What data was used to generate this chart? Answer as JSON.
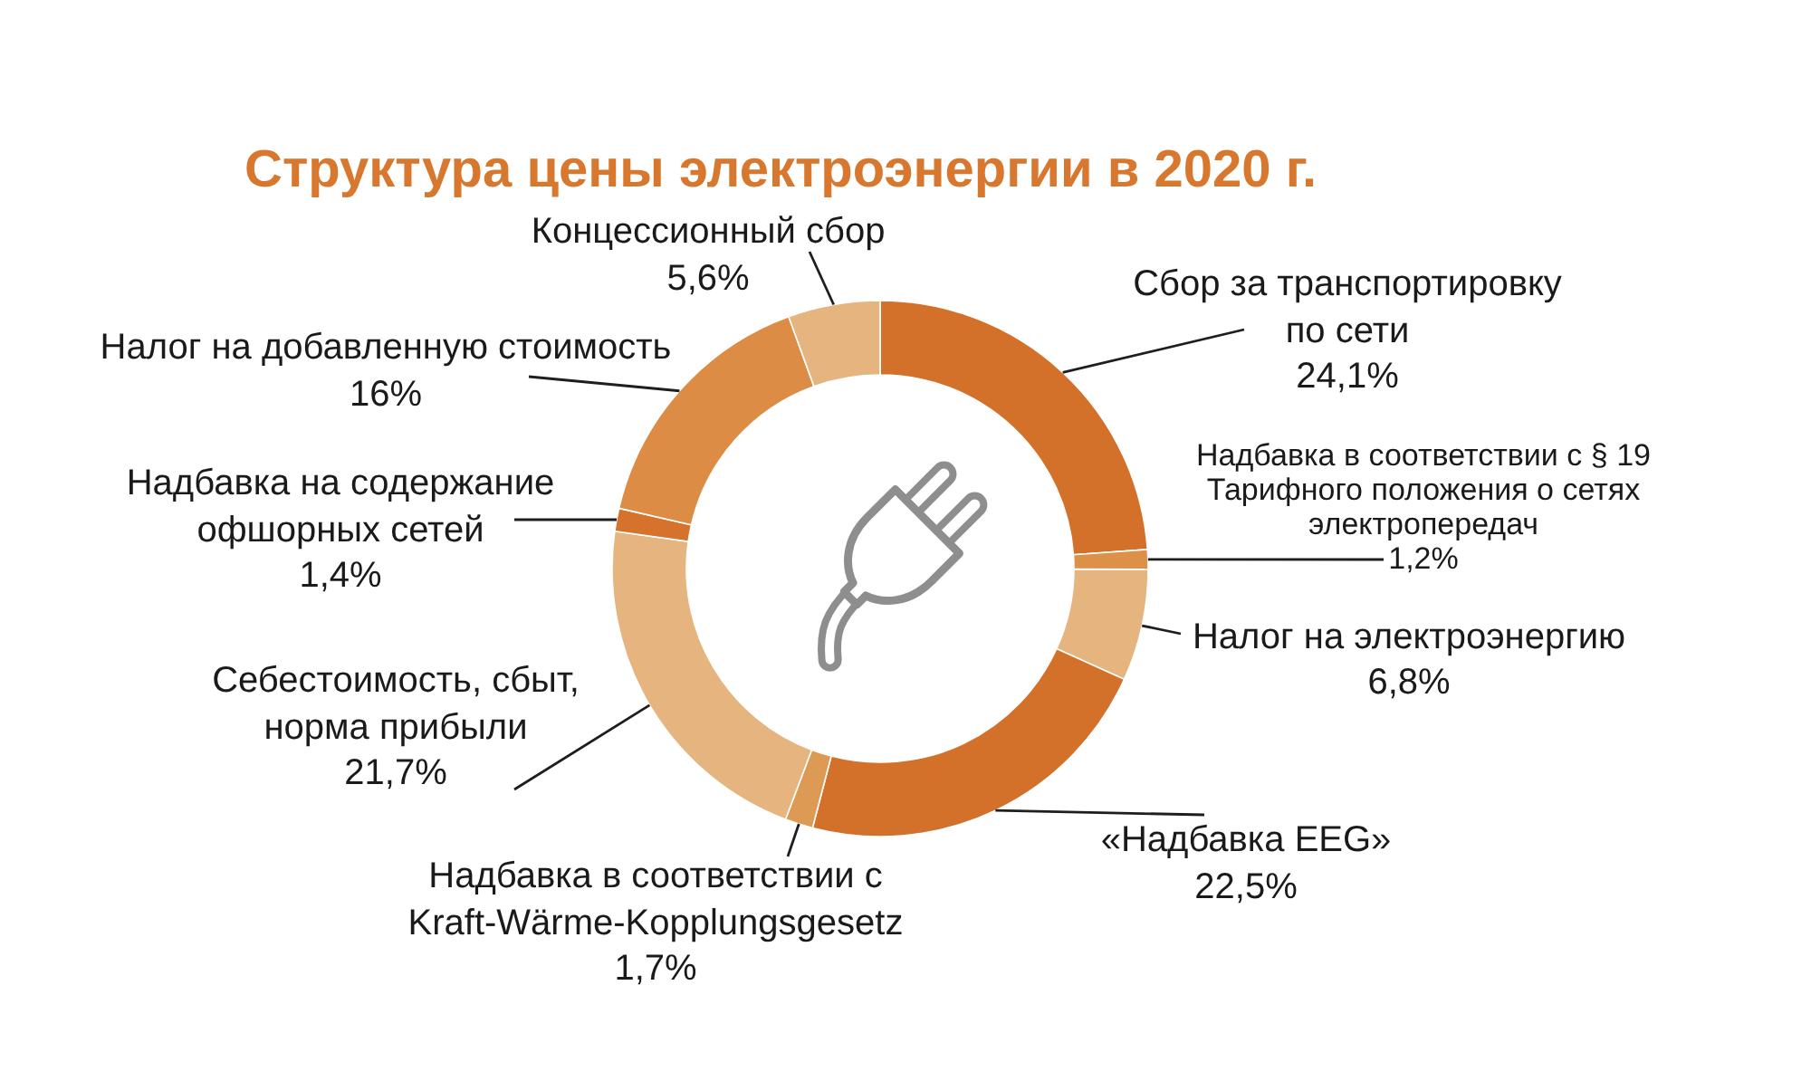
{
  "chart_data": {
    "type": "donut",
    "title": "Структура цены электроэнергии в 2020 г.",
    "categories": [
      "Сбор за транспортировку по сети",
      "Надбавка в соответствии с § 19 Тарифного положения о сетях электропередач",
      "Налог на электроэнергию",
      "«Надбавка EEG»",
      "Надбавка в соответствии с Kraft-Wärme-Kopplungsgesetz",
      "Себестоимость, сбыт, норма прибыли",
      "Надбавка на содержание офшорных сетей",
      "Налог на добавленную стоимость",
      "Концессионный сбор"
    ],
    "values": [
      24.1,
      1.2,
      6.8,
      22.5,
      1.7,
      21.7,
      1.4,
      16,
      5.6
    ],
    "colors": [
      "#d3712b",
      "#dc9048",
      "#e5b47f",
      "#d3712b",
      "#dd9a55",
      "#e5b47f",
      "#d5732d",
      "#dc8c44",
      "#e5b47f"
    ],
    "value_labels": [
      "24,1%",
      "1,2%",
      "6,8%",
      "22,5%",
      "1,7%",
      "21,7%",
      "1,4%",
      "16%",
      "5,6%"
    ]
  }
}
